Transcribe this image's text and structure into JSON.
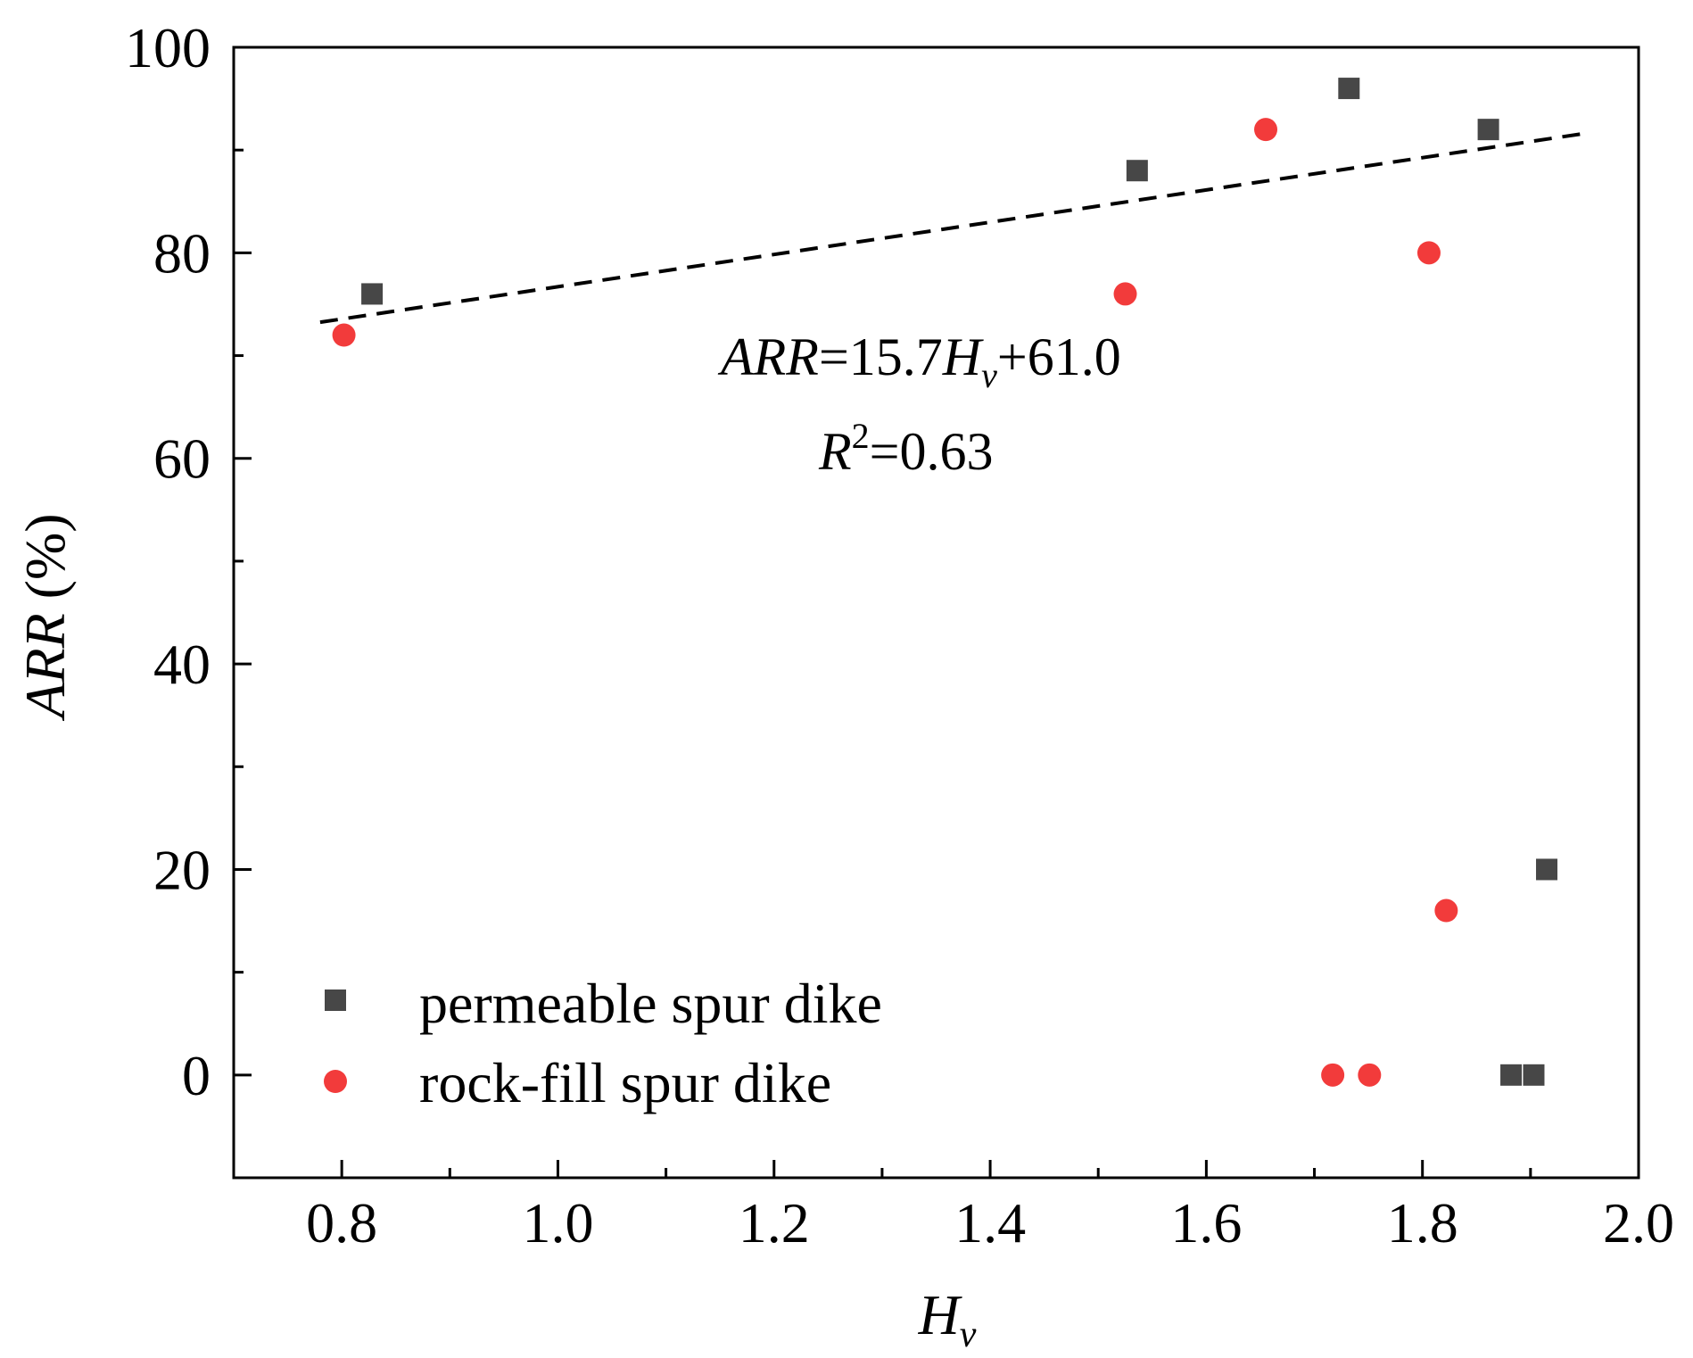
{
  "chart_data": {
    "type": "scatter",
    "xlabel": {
      "base": "H",
      "sub": "v"
    },
    "ylabel": {
      "italic": "ARR",
      "rest": " (%)"
    },
    "xlim": [
      0.7,
      2.0
    ],
    "ylim": [
      -10,
      100
    ],
    "xticks": [
      0.8,
      1.0,
      1.2,
      1.4,
      1.6,
      1.8,
      2.0
    ],
    "xtick_labels": [
      "0.8",
      "1.0",
      "1.2",
      "1.4",
      "1.6",
      "1.8",
      "2.0"
    ],
    "yticks": [
      0,
      20,
      40,
      60,
      80,
      100
    ],
    "ytick_labels": [
      "0",
      "20",
      "40",
      "60",
      "80",
      "100"
    ],
    "x_minor_ticks": [
      0.9,
      1.1,
      1.3,
      1.5,
      1.7,
      1.9
    ],
    "y_minor_ticks": [
      10,
      30,
      50,
      70,
      90
    ],
    "grid": false,
    "legend_position": "bottom-left",
    "series": [
      {
        "name": "permeable spur dike",
        "marker": "square",
        "color": "#474747",
        "x": [
          0.828,
          1.536,
          1.732,
          1.861,
          1.882,
          1.903,
          1.915
        ],
        "y": [
          76,
          88,
          96,
          92,
          0,
          0,
          20
        ]
      },
      {
        "name": "rock-fill spur dike",
        "marker": "circle",
        "color": "#f23b3b",
        "x": [
          0.802,
          1.525,
          1.655,
          1.806,
          1.717,
          1.751,
          1.822
        ],
        "y": [
          72,
          76,
          92,
          80,
          0,
          0,
          16
        ]
      }
    ],
    "fit_line": {
      "slope": 15.7,
      "intercept": 61.0,
      "x_range": [
        0.78,
        1.95
      ],
      "style": "dashed",
      "color": "#000000"
    },
    "annotations": {
      "equation": {
        "lhs": "ARR",
        "eq": "=15.7",
        "var": "H",
        "sub": "v",
        "rest": "+61.0"
      },
      "r_squared": {
        "base": "R",
        "sup": "2",
        "rest": "=0.63"
      }
    }
  }
}
